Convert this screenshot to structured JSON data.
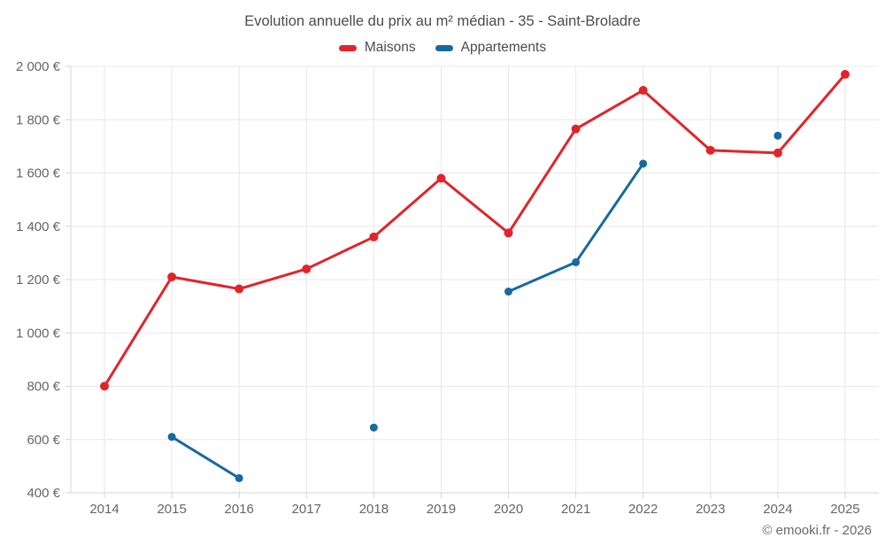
{
  "chart_data": {
    "type": "line",
    "title": "Evolution annuelle du prix au m² médian - 35 - Saint-Broladre",
    "categories": [
      "2014",
      "2015",
      "2016",
      "2017",
      "2018",
      "2019",
      "2020",
      "2021",
      "2022",
      "2023",
      "2024",
      "2025"
    ],
    "series": [
      {
        "name": "Maisons",
        "color": "#e1242a",
        "marker_radius": 5,
        "values": [
          800,
          1210,
          1165,
          1240,
          1360,
          1580,
          1375,
          1765,
          1910,
          1685,
          1675,
          1970
        ]
      },
      {
        "name": "Appartements",
        "color": "#17699f",
        "marker_radius": 4.5,
        "values": [
          null,
          610,
          455,
          null,
          645,
          null,
          1155,
          1265,
          1635,
          null,
          1740,
          null
        ]
      }
    ],
    "xlabel": "",
    "ylabel": "",
    "ylim": [
      400,
      2000
    ],
    "y_ticks": [
      {
        "value": 400,
        "label": "400 €"
      },
      {
        "value": 600,
        "label": "600 €"
      },
      {
        "value": 800,
        "label": "800 €"
      },
      {
        "value": 1000,
        "label": "1 000 €"
      },
      {
        "value": 1200,
        "label": "1 200 €"
      },
      {
        "value": 1400,
        "label": "1 400 €"
      },
      {
        "value": 1600,
        "label": "1 600 €"
      },
      {
        "value": 1800,
        "label": "1 800 €"
      },
      {
        "value": 2000,
        "label": "2 000 €"
      }
    ],
    "grid": true,
    "legend_position": "top",
    "colors": {
      "grid": "#e8e8e8",
      "axis": "#d4d4d4",
      "tick_text": "#666666",
      "title_text": "#4c4c4c"
    }
  },
  "footer": {
    "copyright": "© emooki.fr - 2026"
  }
}
